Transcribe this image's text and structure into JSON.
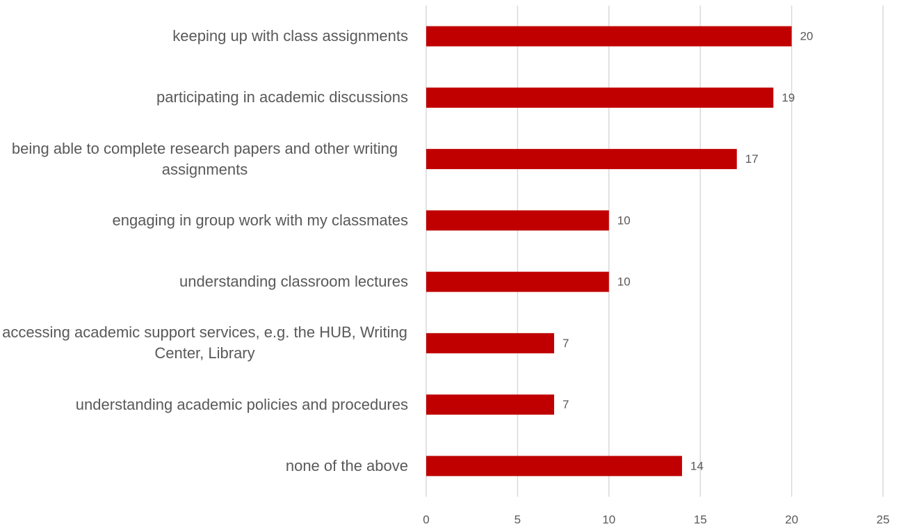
{
  "chart_data": {
    "type": "bar",
    "orientation": "horizontal",
    "categories": [
      "keeping up with class assignments",
      "participating in academic discussions",
      "being able to complete research papers and other writing assignments",
      "engaging in group work with my classmates",
      "understanding classroom lectures",
      "accessing academic support services, e.g. the HUB, Writing Center, Library",
      "understanding academic policies and procedures",
      "none of the above"
    ],
    "values": [
      20,
      19,
      17,
      10,
      10,
      7,
      7,
      14
    ],
    "color": "#c00000",
    "xlim": [
      0,
      25
    ],
    "xticks": [
      0,
      5,
      10,
      15,
      20,
      25
    ],
    "grid": true
  }
}
